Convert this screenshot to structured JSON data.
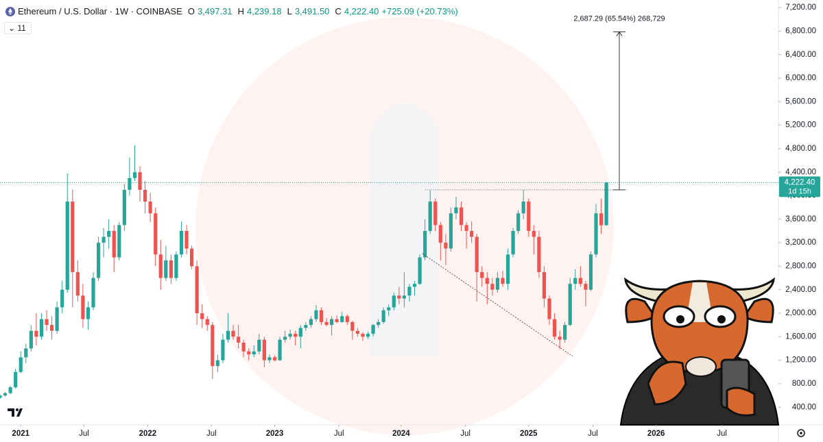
{
  "header": {
    "symbol": "Ethereum / U.S. Dollar · 1W · COINBASE",
    "open_key": "O",
    "open": "3,497.31",
    "high_key": "H",
    "high": "4,239.18",
    "low_key": "L",
    "low": "3,491.50",
    "close_key": "C",
    "close": "4,222.40",
    "change": "+725.09 (+20.73%)",
    "indicators": "11"
  },
  "chart_data": {
    "type": "candlestick",
    "up_color": "#26a69a",
    "down_color": "#ef5350",
    "open": [
      560,
      600,
      640,
      740,
      1000,
      1250,
      1400,
      1700,
      1600,
      1900,
      1800,
      1700,
      2100,
      2400,
      3900,
      2700,
      2300,
      1900,
      2100,
      2600,
      3200,
      3300,
      3400,
      2950,
      3500,
      4100,
      4300,
      4400,
      4100,
      3900,
      3700,
      3000,
      2600,
      2900,
      2600,
      3000,
      3400,
      3100,
      2800,
      2000,
      1900,
      1800,
      1100,
      1200,
      1550,
      1700,
      1600,
      1500,
      1350,
      1300,
      1350,
      1550,
      1200,
      1250,
      1200,
      1550,
      1600,
      1650,
      1600,
      1750,
      1800,
      1900,
      2050,
      1850,
      1800,
      1900,
      1850,
      1950,
      1850,
      1700,
      1650,
      1600,
      1650,
      1800,
      1850,
      2050,
      2100,
      2300,
      2250,
      2300,
      2450,
      2500,
      2950,
      3400,
      3900,
      3500,
      3200,
      3100,
      3700,
      3800,
      3500,
      3400,
      3300,
      2700,
      2600,
      2500,
      2400,
      2600,
      2500,
      3000,
      3400,
      3700,
      3900,
      3400,
      3300,
      2700,
      2250,
      1900,
      1600,
      1550,
      1800,
      2500,
      2600,
      2500,
      2400,
      3000,
      3700,
      3497.31
    ],
    "high": [
      620,
      660,
      760,
      1050,
      1350,
      1480,
      1800,
      2000,
      2000,
      2050,
      1950,
      2200,
      2550,
      4380,
      4100,
      2900,
      2500,
      2200,
      2700,
      3300,
      3450,
      3600,
      3500,
      3550,
      4200,
      4650,
      4860,
      4500,
      4250,
      4050,
      3800,
      3250,
      3150,
      3000,
      3050,
      3560,
      3500,
      3150,
      2900,
      2150,
      1950,
      1850,
      1300,
      1650,
      2000,
      1800,
      1800,
      1550,
      1400,
      1450,
      1650,
      1600,
      1300,
      1280,
      1600,
      1700,
      1720,
      1700,
      1800,
      1850,
      1950,
      2140,
      2100,
      1920,
      1950,
      1960,
      2020,
      1980,
      1870,
      1750,
      1680,
      1690,
      1820,
      1900,
      2100,
      2150,
      2350,
      2450,
      2700,
      2500,
      2550,
      3000,
      3600,
      4090,
      3950,
      3550,
      3350,
      3800,
      3980,
      3900,
      3550,
      3560,
      3350,
      2800,
      2700,
      2600,
      2700,
      2720,
      3100,
      3450,
      3750,
      4100,
      3950,
      3500,
      3400,
      2800,
      2300,
      2000,
      1700,
      1850,
      2600,
      2750,
      2800,
      2550,
      3050,
      3860,
      3950,
      4239.18
    ],
    "low": [
      540,
      580,
      620,
      720,
      980,
      1150,
      1350,
      1450,
      1550,
      1700,
      1550,
      1650,
      2000,
      2350,
      2100,
      2200,
      1750,
      1720,
      2050,
      2550,
      2950,
      3100,
      2700,
      2900,
      3400,
      4000,
      4250,
      3900,
      3700,
      3550,
      2800,
      2400,
      2550,
      2500,
      2550,
      2950,
      3000,
      2750,
      1800,
      1750,
      1700,
      880,
      1000,
      1150,
      1500,
      1550,
      1400,
      1250,
      1200,
      1250,
      1300,
      1080,
      1150,
      1180,
      1190,
      1500,
      1550,
      1450,
      1400,
      1700,
      1750,
      1850,
      1800,
      1780,
      1620,
      1830,
      1840,
      1800,
      1550,
      1600,
      1530,
      1560,
      1600,
      1750,
      1820,
      1950,
      2050,
      2150,
      2100,
      2200,
      2300,
      2480,
      2900,
      3350,
      3400,
      2900,
      2820,
      3050,
      3600,
      3400,
      3100,
      3200,
      2200,
      2450,
      2150,
      2300,
      2350,
      2450,
      2400,
      2950,
      3350,
      3600,
      3300,
      3000,
      2600,
      2100,
      1800,
      1550,
      1390,
      1500,
      1780,
      2400,
      2450,
      2120,
      2380,
      2950,
      3350,
      3491.5
    ],
    "close": [
      600,
      640,
      740,
      1000,
      1250,
      1400,
      1700,
      1600,
      1900,
      1800,
      1700,
      2100,
      2400,
      3900,
      2700,
      2300,
      1900,
      2100,
      2600,
      3200,
      3300,
      3400,
      2950,
      3500,
      4100,
      4300,
      4400,
      4100,
      3900,
      3700,
      3000,
      2600,
      2900,
      2600,
      3000,
      3400,
      3100,
      2800,
      2000,
      1900,
      1800,
      1100,
      1200,
      1550,
      1700,
      1600,
      1500,
      1350,
      1300,
      1350,
      1550,
      1200,
      1250,
      1200,
      1550,
      1600,
      1650,
      1600,
      1750,
      1800,
      1900,
      2050,
      1850,
      1800,
      1900,
      1850,
      1950,
      1850,
      1700,
      1650,
      1600,
      1650,
      1800,
      1850,
      2050,
      2100,
      2300,
      2250,
      2300,
      2450,
      2500,
      2950,
      3400,
      3900,
      3500,
      3200,
      3100,
      3700,
      3800,
      3500,
      3400,
      3300,
      2700,
      2600,
      2500,
      2400,
      2600,
      2500,
      3000,
      3400,
      3700,
      3900,
      3400,
      3300,
      2700,
      2250,
      1900,
      1600,
      1550,
      1800,
      2500,
      2600,
      2500,
      2400,
      3000,
      3700,
      3497.31,
      4222.4
    ],
    "xlim": [
      0,
      150.2
    ],
    "ylim": [
      100,
      7330
    ],
    "xticks": [
      {
        "value": 4,
        "label": "2021"
      },
      {
        "value": 16.2,
        "label": "Jul"
      },
      {
        "value": 28.5,
        "label": "2022"
      },
      {
        "value": 40.8,
        "label": "Jul"
      },
      {
        "value": 53,
        "label": "2023"
      },
      {
        "value": 65.4,
        "label": "Jul"
      },
      {
        "value": 77.4,
        "label": "2024"
      },
      {
        "value": 89.8,
        "label": "Jul"
      },
      {
        "value": 102,
        "label": "2025"
      },
      {
        "value": 114.4,
        "label": "Jul"
      },
      {
        "value": 126.6,
        "label": "2026"
      },
      {
        "value": 139.3,
        "label": "Jul"
      }
    ],
    "yticks": [
      {
        "value": 400,
        "label": "400.00"
      },
      {
        "value": 800,
        "label": "800.00"
      },
      {
        "value": 1200,
        "label": "1,200.00"
      },
      {
        "value": 1600,
        "label": "1,600.00"
      },
      {
        "value": 2000,
        "label": "2,000.00"
      },
      {
        "value": 2400,
        "label": "2,400.00"
      },
      {
        "value": 2800,
        "label": "2,800.00"
      },
      {
        "value": 3200,
        "label": "3,200.00"
      },
      {
        "value": 3600,
        "label": "3,600.00"
      },
      {
        "value": 4000,
        "label": "4,000.00"
      },
      {
        "value": 4400,
        "label": "4,400.00"
      },
      {
        "value": 4800,
        "label": "4,800.00"
      },
      {
        "value": 5200,
        "label": "5,200.00"
      },
      {
        "value": 5600,
        "label": "5,600.00"
      },
      {
        "value": 6000,
        "label": "6,000.00"
      },
      {
        "value": 6400,
        "label": "6,400.00"
      },
      {
        "value": 6800,
        "label": "6,800.00"
      },
      {
        "value": 7200,
        "label": "7,200.00"
      }
    ],
    "last_price": {
      "label": "4,222.40",
      "countdown": "1d 15h"
    },
    "trendline": {
      "x": [
        81.5,
        110.5
      ],
      "y": [
        3015,
        1266
      ]
    },
    "level": {
      "x": [
        82,
        121
      ],
      "y": 4100
    },
    "measure": {
      "label": "2,687.29 (65.54%) 268,729",
      "x": 119.5,
      "from": 4100,
      "to": 6787.29
    }
  }
}
